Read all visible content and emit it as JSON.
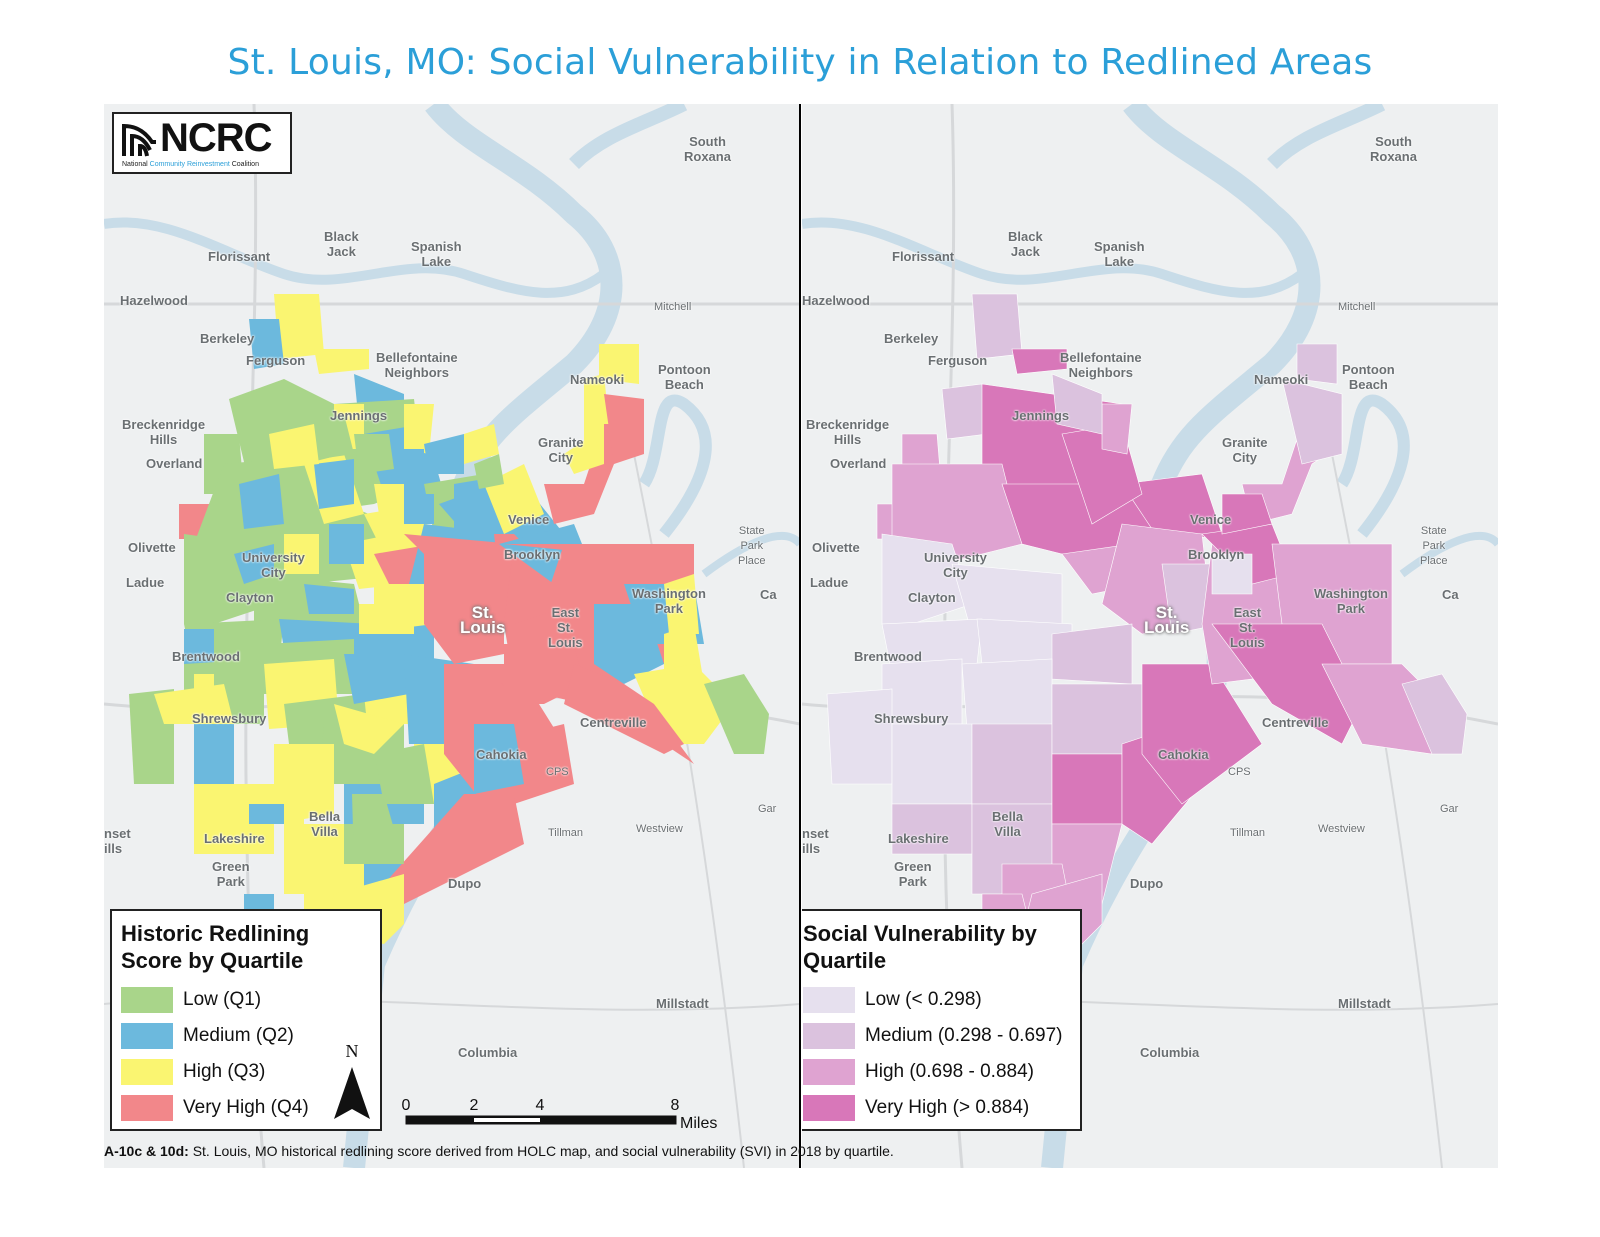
{
  "title": "St. Louis, MO: Social Vulnerability in Relation to Redlined Areas",
  "logo": {
    "name": "NCRC",
    "sub_prefix": "National ",
    "sub_highlight": "Community Reinvestment",
    "sub_suffix": " Coalition"
  },
  "place_labels": {
    "south_roxana": "South\nRoxana",
    "black_jack": "Black\nJack",
    "spanish_lake": "Spanish\nLake",
    "florissant": "Florissant",
    "hazelwood": "Hazelwood",
    "mitchell": "Mitchell",
    "berkeley": "Berkeley",
    "ferguson": "Ferguson",
    "bellefontaine": "Bellefontaine\nNeighbors",
    "nameoki": "Nameoki",
    "pontoon_beach": "Pontoon\nBeach",
    "breckenridge": "Breckenridge\nHills",
    "overland": "Overland",
    "jennings": "Jennings",
    "granite_city": "Granite\nCity",
    "venice": "Venice",
    "state_park_place": "State\nPark\nPlace",
    "olivette": "Olivette",
    "university_city": "University\nCity",
    "brooklyn": "Brooklyn",
    "ladue": "Ladue",
    "clayton": "Clayton",
    "washington_park": "Washington\nPark",
    "ca": "Ca",
    "st_louis": "St.\nLouis",
    "east_st_louis": "East\nSt.\nLouis",
    "brentwood": "Brentwood",
    "shrewsbury": "Shrewsbury",
    "centreville": "Centreville",
    "cahokia": "Cahokia",
    "cps": "CPS",
    "gar": "Gar",
    "nset_ills": "nset\nills",
    "lakeshire": "Lakeshire",
    "bella_villa": "Bella\nVilla",
    "tillman": "Tillman",
    "westview": "Westview",
    "green_park": "Green\nPark",
    "dupo": "Dupo",
    "millstadt": "Millstadt",
    "columbia": "Columbia"
  },
  "legend_left": {
    "title": "Historic Redlining Score by Quartile",
    "items": [
      {
        "label": "Low (Q1)",
        "color": "#a9d58a"
      },
      {
        "label": "Medium (Q2)",
        "color": "#6cb9dd"
      },
      {
        "label": "High (Q3)",
        "color": "#faf571"
      },
      {
        "label": "Very High (Q4)",
        "color": "#f2878a"
      }
    ]
  },
  "legend_right": {
    "title": "Social Vulnerability by Quartile",
    "items": [
      {
        "label": "Low (< 0.298)",
        "color": "#e6e0ee"
      },
      {
        "label": "Medium (0.298 - 0.697)",
        "color": "#dbc2de"
      },
      {
        "label": "High (0.698 - 0.884)",
        "color": "#dfa3d1"
      },
      {
        "label": "Very High (> 0.884)",
        "color": "#d877b9"
      }
    ]
  },
  "north_label": "N",
  "scale": {
    "ticks": [
      "0",
      "2",
      "4",
      "8"
    ],
    "unit": "Miles"
  },
  "caption": {
    "bold": "A-10c & 10d:",
    "text": " St. Louis, MO historical redlining score derived from HOLC map, and social vulnerability (SVI) in 2018 by quartile."
  }
}
